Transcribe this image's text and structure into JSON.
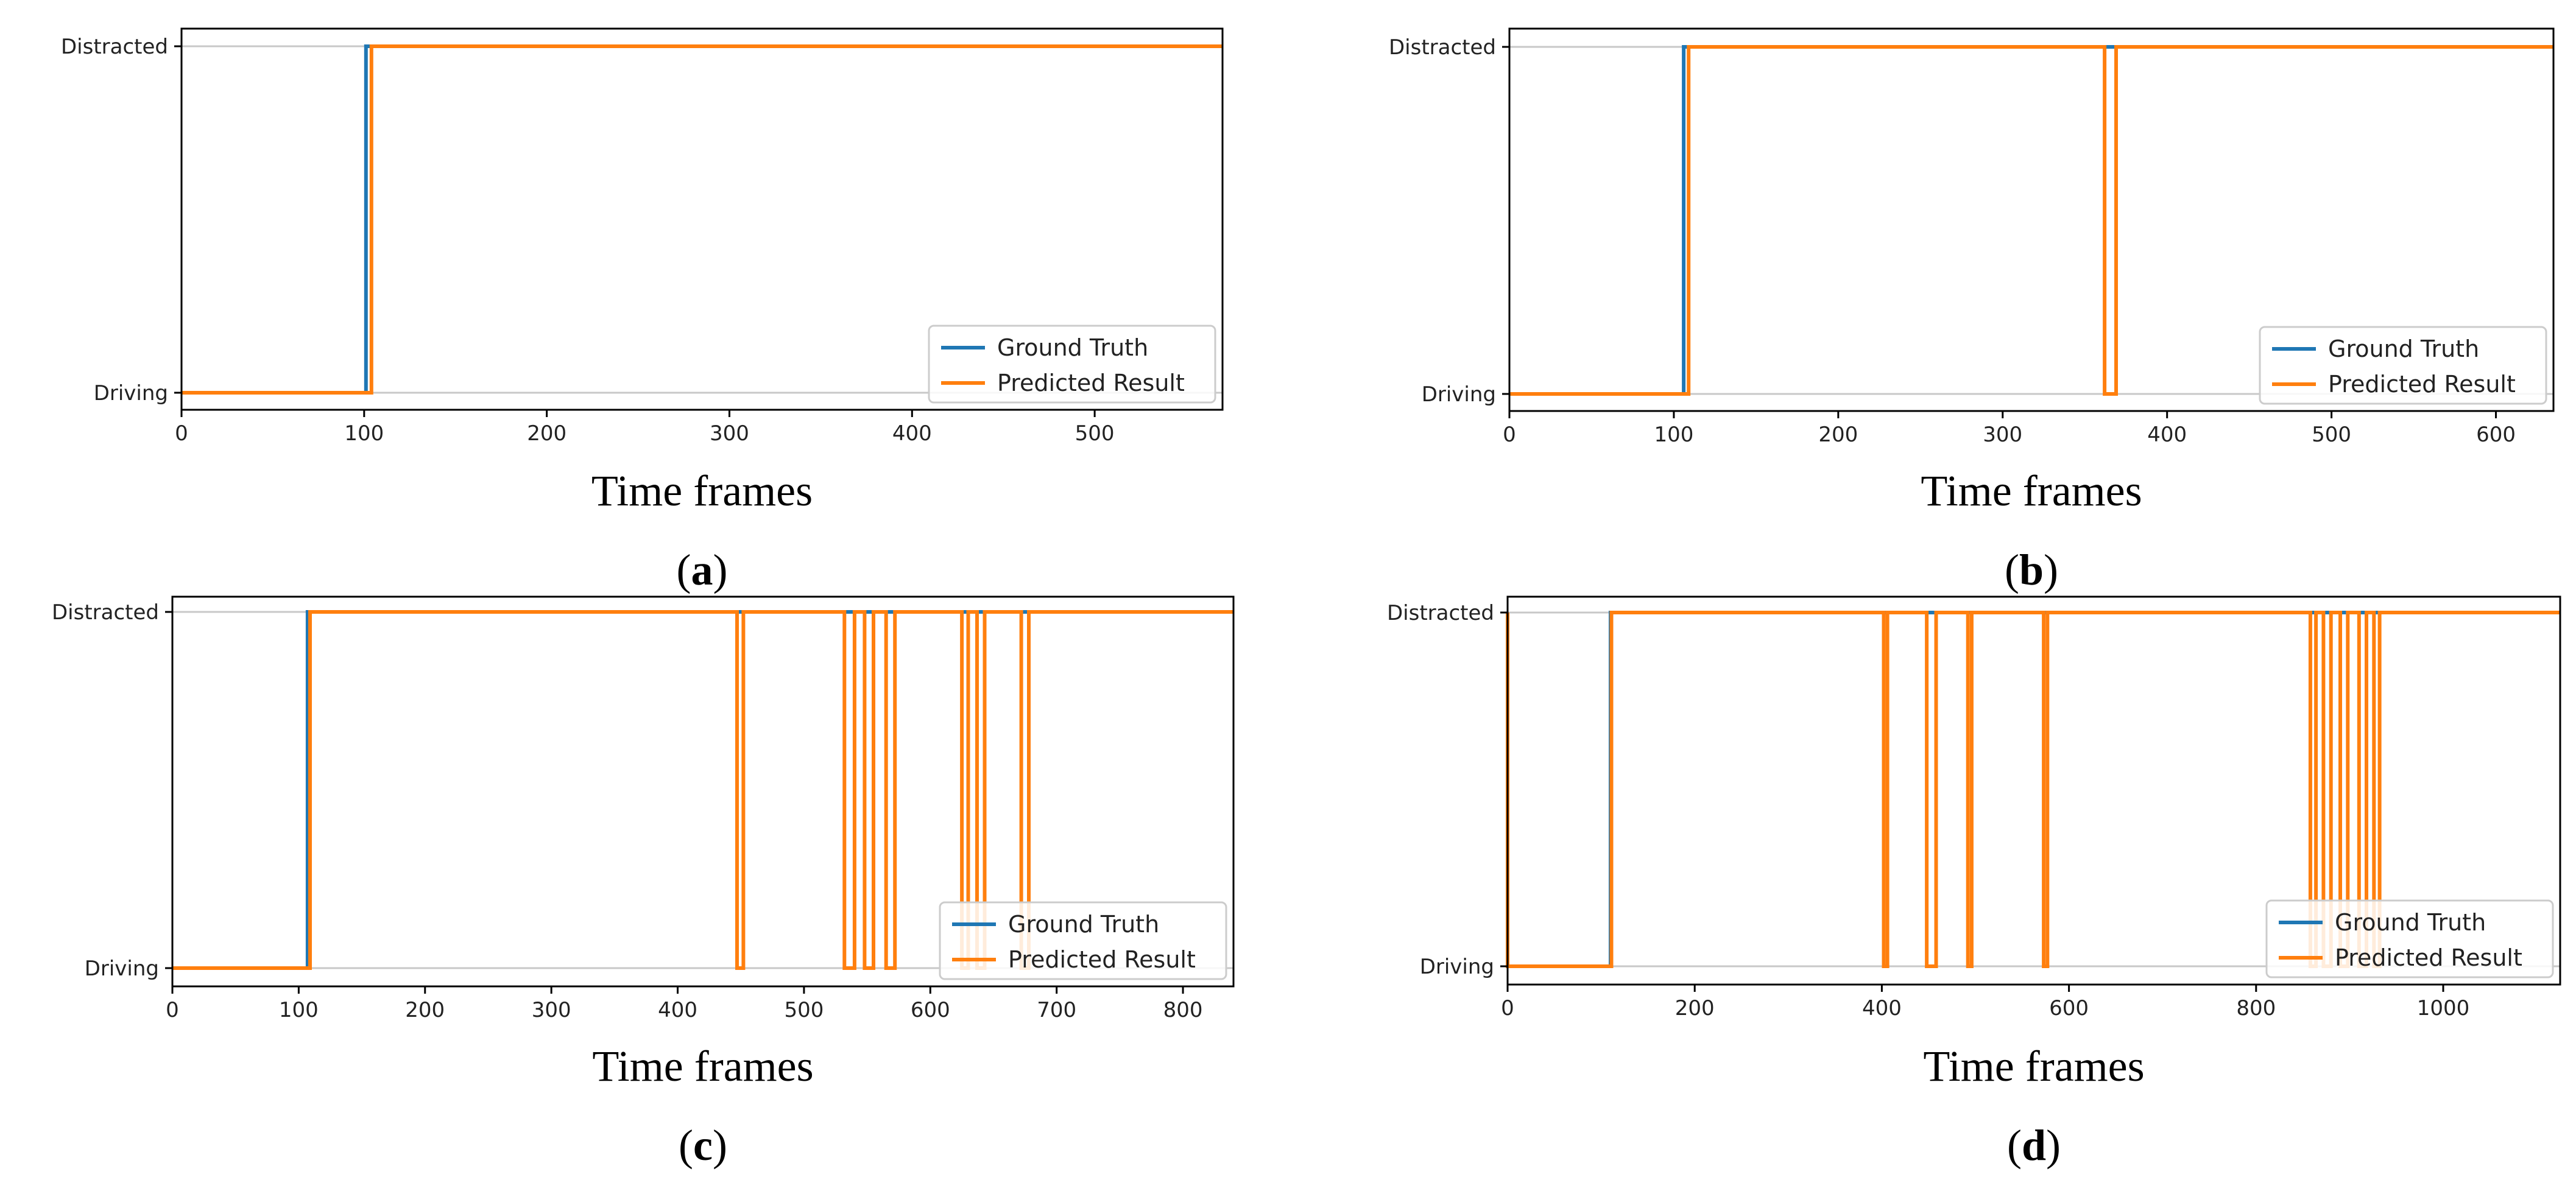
{
  "chart_data": [
    {
      "panel_label": "a",
      "type": "line",
      "xlabel": "Time frames",
      "xlim": [
        0,
        570
      ],
      "xticks": [
        0,
        100,
        200,
        300,
        400,
        500
      ],
      "ycategories": [
        "Driving",
        "Distracted"
      ],
      "legend": {
        "placement": "lower-right",
        "entries": [
          "Ground Truth",
          "Predicted Result"
        ]
      },
      "series": [
        {
          "name": "Ground Truth",
          "color": "#1f77b4",
          "x": [
            0,
            101,
            101,
            570
          ],
          "y": [
            0,
            0,
            1,
            1
          ]
        },
        {
          "name": "Predicted Result",
          "color": "#ff7f0e",
          "x": [
            0,
            104,
            104,
            570
          ],
          "y": [
            0,
            0,
            1,
            1
          ]
        }
      ]
    },
    {
      "panel_label": "b",
      "type": "line",
      "xlabel": "Time frames",
      "xlim": [
        0,
        635
      ],
      "xticks": [
        0,
        100,
        200,
        300,
        400,
        500,
        600
      ],
      "ycategories": [
        "Driving",
        "Distracted"
      ],
      "legend": {
        "placement": "lower-right",
        "entries": [
          "Ground Truth",
          "Predicted Result"
        ]
      },
      "series": [
        {
          "name": "Ground Truth",
          "color": "#1f77b4",
          "x": [
            0,
            106,
            106,
            635
          ],
          "y": [
            0,
            0,
            1,
            1
          ]
        },
        {
          "name": "Predicted Result",
          "color": "#ff7f0e",
          "x": [
            0,
            109,
            109,
            362,
            362,
            369,
            369,
            635
          ],
          "y": [
            0,
            0,
            1,
            1,
            0,
            0,
            1,
            1
          ]
        }
      ]
    },
    {
      "panel_label": "c",
      "type": "line",
      "xlabel": "Time frames",
      "xlim": [
        0,
        840
      ],
      "xticks": [
        0,
        100,
        200,
        300,
        400,
        500,
        600,
        700,
        800
      ],
      "ycategories": [
        "Driving",
        "Distracted"
      ],
      "legend": {
        "placement": "lower-right",
        "entries": [
          "Ground Truth",
          "Predicted Result"
        ]
      },
      "series": [
        {
          "name": "Ground Truth",
          "color": "#1f77b4",
          "x": [
            0,
            107,
            107,
            840
          ],
          "y": [
            0,
            0,
            1,
            1
          ]
        },
        {
          "name": "Predicted Result",
          "color": "#ff7f0e",
          "x": [
            0,
            109,
            109,
            447,
            447,
            452,
            452,
            532,
            532,
            540,
            540,
            548,
            548,
            555,
            555,
            565,
            565,
            572,
            572,
            625,
            625,
            630,
            630,
            637,
            637,
            643,
            643,
            672,
            672,
            678,
            678,
            840
          ],
          "y": [
            0,
            0,
            1,
            1,
            0,
            0,
            1,
            1,
            0,
            0,
            1,
            1,
            0,
            0,
            1,
            1,
            0,
            0,
            1,
            1,
            0,
            0,
            1,
            1,
            0,
            0,
            1,
            1,
            0,
            0,
            1,
            1
          ]
        }
      ]
    },
    {
      "panel_label": "d",
      "type": "line",
      "xlabel": "Time frames",
      "xlim": [
        0,
        1125
      ],
      "xticks": [
        0,
        200,
        400,
        600,
        800,
        1000
      ],
      "ycategories": [
        "Driving",
        "Distracted"
      ],
      "legend": {
        "placement": "lower-right",
        "entries": [
          "Ground Truth",
          "Predicted Result"
        ]
      },
      "series": [
        {
          "name": "Ground Truth",
          "color": "#1f77b4",
          "x": [
            0,
            110,
            110,
            1125
          ],
          "y": [
            0,
            0,
            1,
            1
          ]
        },
        {
          "name": "Predicted Result",
          "color": "#ff7f0e",
          "x": [
            0,
            0,
            0,
            111,
            111,
            402,
            402,
            406,
            406,
            448,
            448,
            458,
            458,
            492,
            492,
            496,
            496,
            573,
            573,
            577,
            577,
            858,
            858,
            864,
            864,
            872,
            872,
            880,
            880,
            890,
            890,
            898,
            898,
            910,
            910,
            918,
            918,
            926,
            926,
            932,
            932,
            1125
          ],
          "y": [
            1,
            0,
            0,
            0,
            1,
            1,
            0,
            0,
            1,
            1,
            0,
            0,
            1,
            1,
            0,
            0,
            1,
            1,
            0,
            0,
            1,
            1,
            0,
            0,
            1,
            1,
            0,
            0,
            1,
            1,
            0,
            0,
            1,
            1,
            0,
            0,
            1,
            1,
            0,
            0,
            1,
            1
          ]
        }
      ]
    }
  ]
}
